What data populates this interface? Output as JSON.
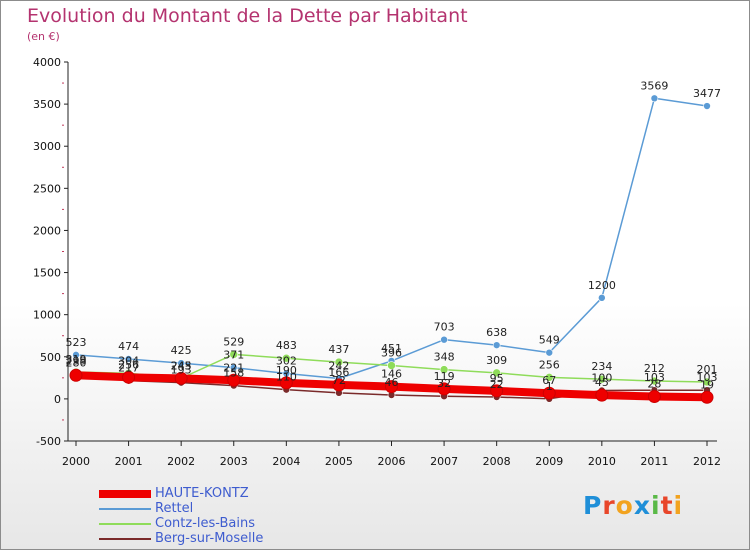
{
  "title": "Evolution du Montant de la Dette par Habitant",
  "subtitle": "(en €)",
  "logo": {
    "letters": [
      "P",
      "r",
      "o",
      "x",
      "i",
      "t",
      "i"
    ],
    "colors": [
      "#1f8fd8",
      "#e8462a",
      "#f2a31f",
      "#1f8fd8",
      "#5ab947",
      "#e8462a",
      "#f2a31f"
    ]
  },
  "chart_data": {
    "type": "line",
    "title": "Evolution du Montant de la Dette par Habitant",
    "ylabel": "(en €)",
    "xlabel": "",
    "x": [
      "2000",
      "2001",
      "2002",
      "2003",
      "2004",
      "2005",
      "2006",
      "2007",
      "2008",
      "2009",
      "2010",
      "2011",
      "2012"
    ],
    "ylim": [
      -500,
      4000
    ],
    "yticks": [
      "-500",
      "0",
      "500",
      "1000",
      "1500",
      "2000",
      "2500",
      "3000",
      "3500",
      "4000"
    ],
    "grid": false,
    "legend": "bottom-left",
    "series": [
      {
        "name": "Rettel",
        "color": "#5b9bd5",
        "width": 1.5,
        "marker": 3.5,
        "values": [
          523,
          474,
          425,
          371,
          302,
          242,
          451,
          703,
          638,
          549,
          1200,
          3569,
          3477
        ],
        "labels": [
          "523",
          "474",
          "425",
          "371",
          "302",
          "242",
          "451",
          "703",
          "638",
          "549",
          "1200",
          "3569",
          "3477"
        ]
      },
      {
        "name": "Contz-les-Bains",
        "color": "#8fdc5a",
        "width": 1.5,
        "marker": 4,
        "values": [
          319,
          304,
          245,
          529,
          483,
          437,
          396,
          348,
          309,
          256,
          234,
          212,
          201
        ],
        "labels": [
          "319",
          "304",
          "245",
          "529",
          "483",
          "437",
          "396",
          "348",
          "309",
          "256",
          "234",
          "212",
          "201"
        ]
      },
      {
        "name": "Berg-sur-Moselle",
        "color": "#7a2a2a",
        "width": 1.5,
        "marker": 3.5,
        "values": [
          299,
          217,
          193,
          158,
          110,
          72,
          46,
          32,
          22,
          1,
          100,
          103,
          103
        ],
        "labels": [
          "299",
          "217",
          "193",
          "158",
          "110",
          "72",
          "46",
          "32",
          "22",
          "1",
          "100",
          "103",
          "103"
        ]
      },
      {
        "name": "HAUTE-KONTZ",
        "color": "#ee0000",
        "width": 8,
        "marker": 6,
        "values": [
          280,
          256,
          243,
          221,
          190,
          166,
          146,
          119,
          95,
          67,
          45,
          28,
          19
        ],
        "labels": [
          "280",
          "256",
          "243",
          "221",
          "190",
          "166",
          "146",
          "119",
          "95",
          "67",
          "45",
          "28",
          "19"
        ]
      }
    ]
  },
  "legend": [
    {
      "label": "HAUTE-KONTZ",
      "color": "#ee0000",
      "thickness": 8
    },
    {
      "label": "Rettel",
      "color": "#5b9bd5",
      "thickness": 2
    },
    {
      "label": "Contz-les-Bains",
      "color": "#8fdc5a",
      "thickness": 2
    },
    {
      "label": "Berg-sur-Moselle",
      "color": "#7a2a2a",
      "thickness": 2
    }
  ]
}
